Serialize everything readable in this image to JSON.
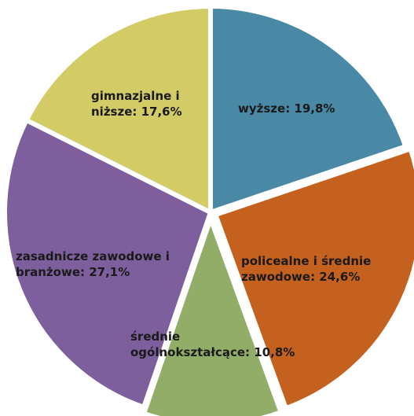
{
  "chart_data": {
    "type": "pie",
    "title": "",
    "slices": [
      {
        "label": "wyższe: 19,8%",
        "value": 19.8,
        "color": "#4a89a6"
      },
      {
        "label": "policealne i średnie zawodowe: 24,6%",
        "value": 24.6,
        "color": "#c4611e"
      },
      {
        "label": "średnie ogólnokształcące: 10,8%",
        "value": 10.8,
        "color": "#91ad68"
      },
      {
        "label": "zasadnicze zawodowe i branżowe: 27,1%",
        "value": 27.1,
        "color": "#7c5f9c"
      },
      {
        "label": "gimnazjalne i niższe: 17,6%",
        "value": 17.6,
        "color": "#d3cb65"
      }
    ]
  }
}
